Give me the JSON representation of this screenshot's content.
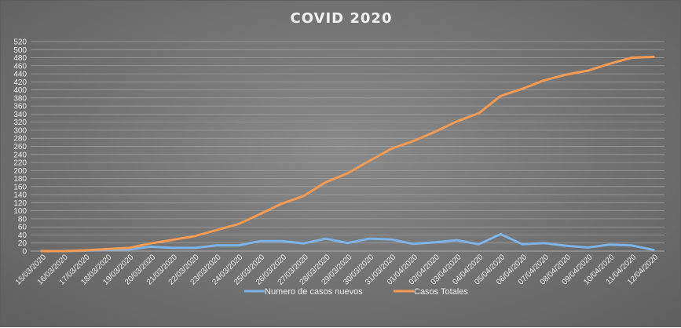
{
  "chart_data": {
    "type": "line",
    "title": "COVID 2020",
    "xlabel": "",
    "ylabel": "",
    "ylim": [
      0,
      520
    ],
    "y_tick_step": 20,
    "grid": true,
    "legend_position": "bottom",
    "x": [
      "15/03/2020",
      "16/03/2020",
      "17/03/2020",
      "18/03/2020",
      "19/03/2020",
      "20/03/2020",
      "21/03/2020",
      "22/03/2020",
      "23/03/2020",
      "24/03/2020",
      "25/03/2020",
      "26/03/2020",
      "27/03/2020",
      "28/03/2020",
      "29/03/2020",
      "30/03/2020",
      "31/03/2020",
      "01/04/2020",
      "02/04/2020",
      "03/04/2020",
      "04/04/2020",
      "05/04/2020",
      "06/04/2020",
      "07/04/2020",
      "08/04/2020",
      "09/04/2020",
      "10/04/2020",
      "11/04/2020",
      "12/04/2020"
    ],
    "series": [
      {
        "name": "Numero de casos nuevos",
        "color": "#7db3e6",
        "values": [
          0,
          0,
          1,
          3,
          4,
          11,
          8,
          8,
          14,
          14,
          25,
          25,
          19,
          31,
          20,
          31,
          29,
          18,
          22,
          27,
          17,
          42,
          17,
          20,
          13,
          9,
          16,
          14,
          3
        ]
      },
      {
        "name": "Casos Totales",
        "color": "#f39b54",
        "values": [
          0,
          0,
          2,
          5,
          8,
          19,
          28,
          37,
          52,
          67,
          92,
          118,
          137,
          171,
          193,
          224,
          254,
          273,
          296,
          322,
          342,
          385,
          403,
          424,
          438,
          448,
          465,
          480,
          482
        ]
      }
    ]
  }
}
